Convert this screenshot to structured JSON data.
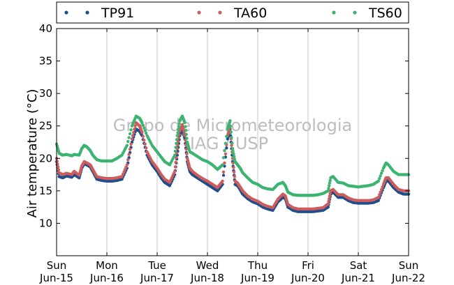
{
  "chart_data": {
    "type": "scatter",
    "watermark": [
      "Grupo de Micrometeorologia",
      "IAG / USP"
    ],
    "ylabel": "Air temperature (°C)",
    "ylim": [
      5,
      40
    ],
    "yticks": [
      10,
      15,
      20,
      25,
      30,
      35,
      40
    ],
    "xlim": [
      0,
      7
    ],
    "xticks": [
      {
        "value": 0,
        "day": "Sun",
        "date": "Jun-15"
      },
      {
        "value": 1,
        "day": "Mon",
        "date": "Jun-16"
      },
      {
        "value": 2,
        "day": "Tue",
        "date": "Jun-17"
      },
      {
        "value": 3,
        "day": "Wed",
        "date": "Jun-18"
      },
      {
        "value": 4,
        "day": "Thu",
        "date": "Jun-19"
      },
      {
        "value": 5,
        "day": "Fri",
        "date": "Jun-20"
      },
      {
        "value": 6,
        "day": "Sat",
        "date": "Jun-21"
      },
      {
        "value": 7,
        "day": "Sun",
        "date": "Jun-22"
      }
    ],
    "grid": "vertical",
    "legend_position": "top",
    "series": [
      {
        "name": "TP91",
        "color": "#1f4e8c",
        "x": [
          0,
          0.05,
          0.12,
          0.2,
          0.3,
          0.35,
          0.45,
          0.5,
          0.55,
          0.6,
          0.67,
          0.72,
          0.8,
          0.9,
          1.0,
          1.1,
          1.2,
          1.3,
          1.4,
          1.5,
          1.58,
          1.65,
          1.7,
          1.8,
          1.9,
          2.0,
          2.08,
          2.15,
          2.25,
          2.35,
          2.4,
          2.45,
          2.5,
          2.55,
          2.6,
          2.65,
          2.7,
          2.8,
          2.9,
          3.0,
          3.1,
          3.2,
          3.3,
          3.4,
          3.45,
          3.5,
          3.55,
          3.6,
          3.65,
          3.7,
          3.8,
          3.9,
          4.0,
          4.1,
          4.2,
          4.3,
          4.4,
          4.5,
          4.55,
          4.6,
          4.7,
          4.8,
          4.9,
          5.0,
          5.1,
          5.2,
          5.3,
          5.4,
          5.45,
          5.5,
          5.6,
          5.7,
          5.8,
          5.9,
          6.0,
          6.1,
          6.2,
          6.3,
          6.4,
          6.5,
          6.55,
          6.6,
          6.7,
          6.8,
          6.9,
          7.0
        ],
        "y": [
          19.5,
          17.2,
          17.0,
          17.3,
          17.1,
          17.5,
          17.0,
          18.5,
          19.2,
          19.0,
          18.7,
          18.0,
          16.8,
          16.6,
          16.5,
          16.5,
          16.6,
          16.8,
          18.5,
          22.5,
          24.5,
          24.2,
          23.5,
          20.5,
          19.0,
          18.0,
          17.0,
          16.3,
          15.8,
          17.5,
          20.5,
          23.5,
          24.5,
          23.0,
          19.5,
          18.0,
          17.5,
          17.0,
          16.5,
          16.0,
          15.5,
          15.0,
          16.0,
          23.0,
          24.5,
          19.5,
          16.0,
          15.8,
          15.2,
          14.5,
          13.8,
          13.3,
          13.0,
          12.5,
          12.2,
          12.0,
          13.3,
          14.0,
          13.8,
          12.5,
          12.0,
          11.8,
          11.8,
          11.8,
          11.8,
          11.9,
          12.0,
          12.5,
          14.5,
          14.8,
          14.0,
          14.0,
          13.5,
          13.2,
          13.1,
          13.1,
          13.1,
          13.2,
          13.5,
          15.5,
          16.5,
          16.5,
          15.5,
          14.8,
          14.5,
          14.5
        ]
      },
      {
        "name": "TA60",
        "color": "#cd5c5c",
        "x": [
          0,
          0.05,
          0.12,
          0.2,
          0.3,
          0.35,
          0.45,
          0.5,
          0.55,
          0.6,
          0.67,
          0.72,
          0.8,
          0.9,
          1.0,
          1.1,
          1.2,
          1.3,
          1.4,
          1.5,
          1.58,
          1.65,
          1.7,
          1.8,
          1.9,
          2.0,
          2.08,
          2.15,
          2.25,
          2.35,
          2.4,
          2.45,
          2.5,
          2.55,
          2.6,
          2.65,
          2.7,
          2.8,
          2.9,
          3.0,
          3.1,
          3.2,
          3.3,
          3.4,
          3.45,
          3.5,
          3.55,
          3.6,
          3.65,
          3.7,
          3.8,
          3.9,
          4.0,
          4.1,
          4.2,
          4.3,
          4.4,
          4.5,
          4.55,
          4.6,
          4.7,
          4.8,
          4.9,
          5.0,
          5.1,
          5.2,
          5.3,
          5.4,
          5.45,
          5.5,
          5.6,
          5.7,
          5.8,
          5.9,
          6.0,
          6.1,
          6.2,
          6.3,
          6.4,
          6.5,
          6.55,
          6.6,
          6.7,
          6.8,
          6.9,
          7.0
        ],
        "y": [
          20.0,
          17.8,
          17.5,
          17.7,
          17.5,
          18.0,
          17.4,
          18.8,
          19.5,
          19.3,
          19.0,
          18.3,
          17.2,
          17.0,
          16.9,
          16.9,
          17.0,
          17.2,
          19.0,
          23.0,
          25.5,
          25.0,
          24.0,
          21.0,
          19.5,
          18.5,
          17.5,
          16.8,
          16.3,
          18.0,
          21.5,
          24.2,
          25.2,
          23.5,
          20.0,
          18.5,
          18.0,
          17.4,
          16.9,
          16.5,
          16.0,
          15.5,
          16.5,
          23.5,
          25.0,
          20.0,
          16.5,
          16.2,
          15.6,
          15.0,
          14.2,
          13.7,
          13.4,
          12.9,
          12.6,
          12.4,
          13.7,
          14.5,
          14.2,
          12.9,
          12.4,
          12.2,
          12.2,
          12.2,
          12.2,
          12.3,
          12.4,
          13.0,
          15.0,
          15.2,
          14.4,
          14.4,
          13.9,
          13.6,
          13.5,
          13.5,
          13.5,
          13.6,
          14.0,
          16.0,
          17.0,
          17.0,
          16.0,
          15.2,
          15.0,
          15.0
        ]
      },
      {
        "name": "TS60",
        "color": "#3cb371",
        "x": [
          0,
          0.05,
          0.12,
          0.2,
          0.3,
          0.35,
          0.45,
          0.5,
          0.55,
          0.6,
          0.67,
          0.72,
          0.8,
          0.9,
          1.0,
          1.1,
          1.2,
          1.3,
          1.4,
          1.5,
          1.58,
          1.65,
          1.7,
          1.8,
          1.9,
          2.0,
          2.08,
          2.15,
          2.25,
          2.35,
          2.4,
          2.45,
          2.5,
          2.55,
          2.6,
          2.65,
          2.7,
          2.8,
          2.9,
          3.0,
          3.1,
          3.2,
          3.3,
          3.4,
          3.45,
          3.5,
          3.55,
          3.6,
          3.65,
          3.7,
          3.8,
          3.9,
          4.0,
          4.1,
          4.2,
          4.3,
          4.4,
          4.5,
          4.55,
          4.6,
          4.7,
          4.8,
          4.9,
          5.0,
          5.1,
          5.2,
          5.3,
          5.4,
          5.45,
          5.5,
          5.6,
          5.7,
          5.8,
          5.9,
          6.0,
          6.1,
          6.2,
          6.3,
          6.4,
          6.5,
          6.55,
          6.6,
          6.7,
          6.8,
          6.9,
          7.0
        ],
        "y": [
          22.2,
          20.8,
          20.5,
          20.6,
          20.4,
          20.6,
          20.5,
          21.5,
          22.0,
          21.8,
          21.2,
          20.5,
          19.8,
          19.6,
          19.6,
          19.6,
          20.0,
          20.5,
          22.0,
          25.0,
          26.5,
          26.2,
          25.5,
          23.5,
          22.0,
          21.0,
          20.2,
          19.5,
          19.0,
          20.5,
          23.5,
          25.8,
          26.5,
          25.5,
          22.5,
          21.0,
          20.8,
          20.3,
          19.8,
          19.5,
          19.0,
          18.3,
          19.0,
          24.5,
          25.8,
          21.5,
          19.5,
          19.0,
          18.5,
          17.8,
          17.0,
          16.3,
          16.0,
          15.5,
          15.3,
          15.2,
          16.0,
          16.3,
          15.8,
          14.8,
          14.4,
          14.3,
          14.3,
          14.3,
          14.3,
          14.4,
          14.6,
          15.0,
          17.0,
          17.2,
          16.3,
          16.2,
          15.8,
          15.7,
          15.6,
          15.7,
          15.8,
          16.0,
          16.5,
          18.5,
          19.3,
          19.0,
          18.0,
          17.5,
          17.5,
          17.5
        ]
      }
    ]
  }
}
